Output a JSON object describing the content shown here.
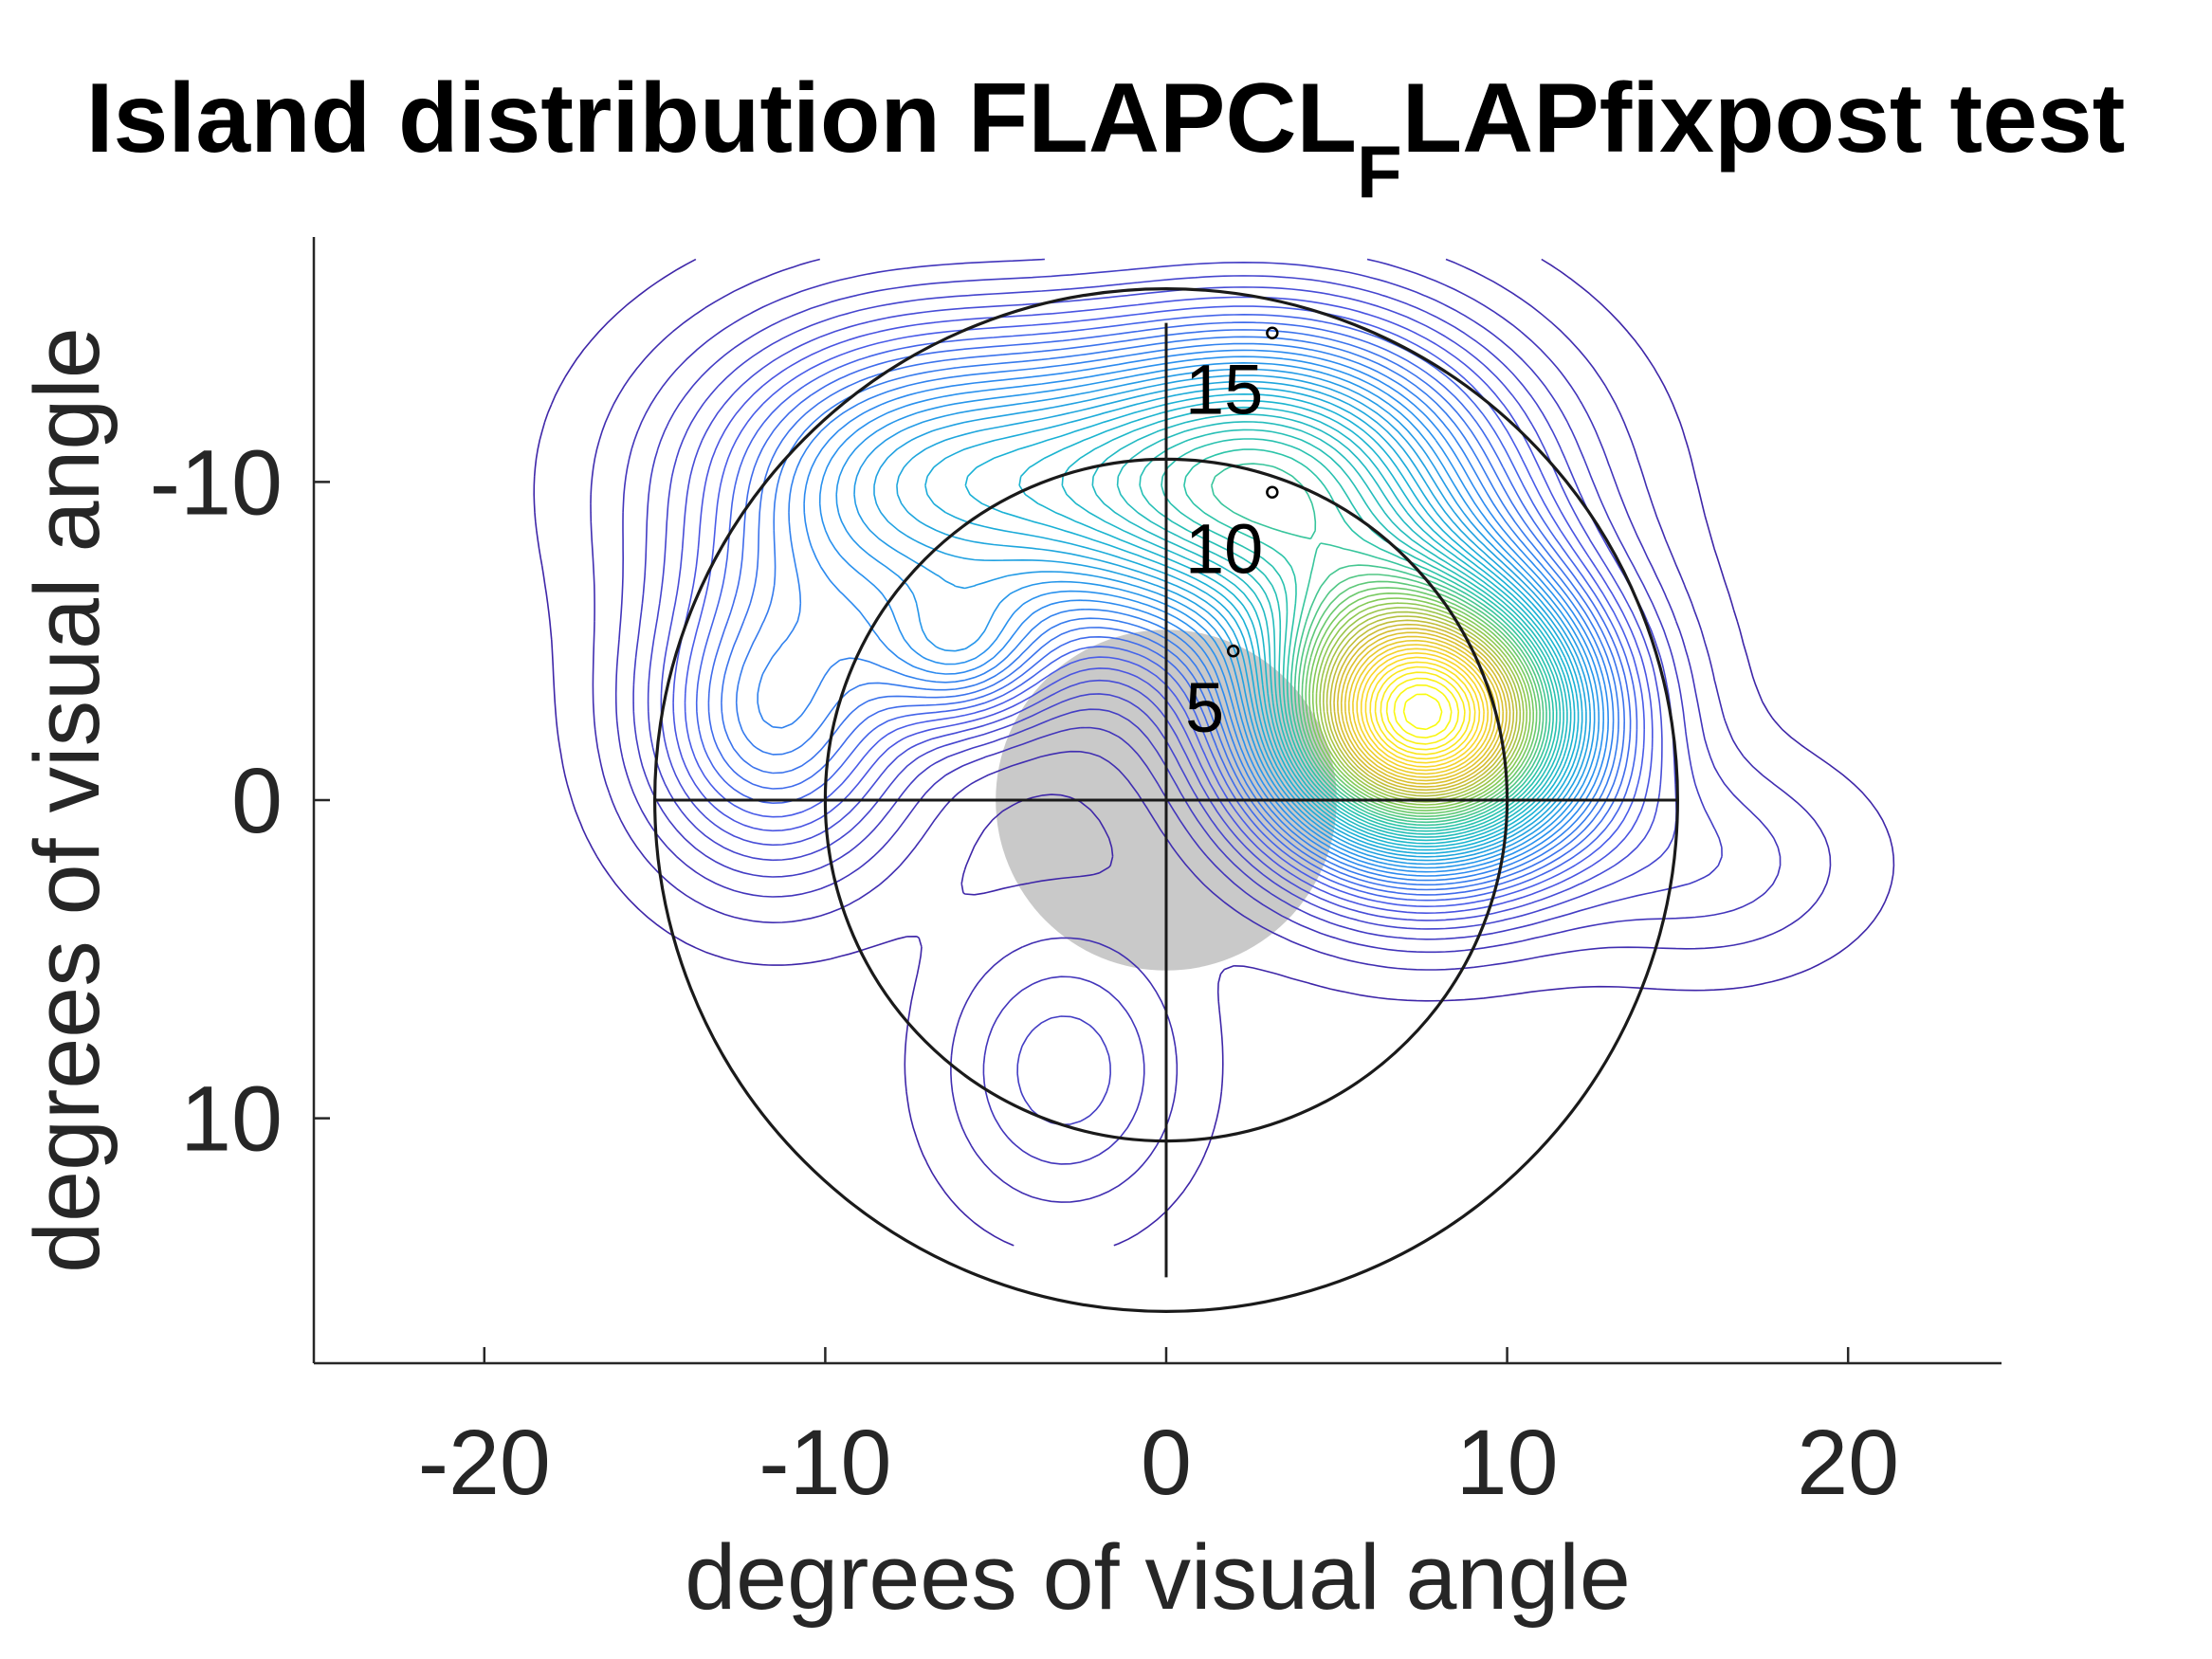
{
  "chart_data": {
    "type": "contour",
    "title": {
      "before": "Island distribution FLAPCL",
      "subscript": "F",
      "after": "LAPfixpost test"
    },
    "xlabel": "degrees of visual angle",
    "ylabel": "degrees of visual angle",
    "xlim": [
      -25,
      24.5
    ],
    "ylim": [
      -17.7,
      17.7
    ],
    "y_reversed": true,
    "xticks": [
      -20,
      -10,
      0,
      10,
      20
    ],
    "yticks": [
      -10,
      0,
      10
    ],
    "polar_rings": [
      {
        "radius": 5,
        "label": "5",
        "unit": "°"
      },
      {
        "radius": 10,
        "label": "10",
        "unit": "°"
      },
      {
        "radius": 15,
        "label": "15",
        "unit": "°"
      }
    ],
    "drawn_rings": [
      10,
      15
    ],
    "scotoma": {
      "center_x": 0,
      "center_y": 0,
      "radius": 5,
      "color": "#bfbfbf"
    },
    "density_peaks": [
      {
        "x": 7.6,
        "y": -2.6,
        "strength": 1.0
      },
      {
        "x": 3.0,
        "y": -10.0,
        "strength": 0.5
      },
      {
        "x": -7.0,
        "y": -10.0,
        "strength": 0.32
      },
      {
        "x": -11.5,
        "y": -2.5,
        "strength": 0.22
      },
      {
        "x": -6.0,
        "y": -4.5,
        "strength": 0.16
      },
      {
        "x": -3.0,
        "y": 8.5,
        "strength": 0.08
      },
      {
        "x": 16.0,
        "y": 2.0,
        "strength": 0.06
      }
    ],
    "contour_levels": 55,
    "colormap": [
      "#3e26a8",
      "#4a5ae8",
      "#2a8ef0",
      "#19b2d4",
      "#2cc4a8",
      "#80cb58",
      "#d2ba30",
      "#fbd629",
      "#f9fb0e"
    ]
  }
}
